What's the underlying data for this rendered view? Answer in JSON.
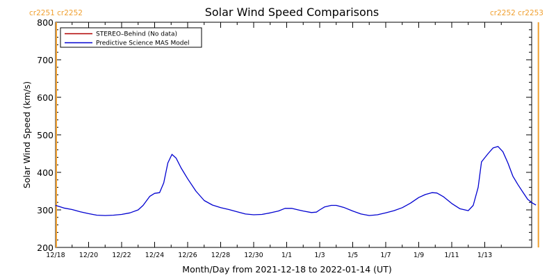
{
  "chart_data": {
    "type": "line",
    "title": "Solar Wind Speed Comparisons",
    "xlabel": "Month/Day from 2021-12-18 to 2022-01-14 (UT)",
    "ylabel": "Solar Wind Speed (km/s)",
    "ylim": [
      200,
      800
    ],
    "yticks": [
      200,
      300,
      400,
      500,
      600,
      700,
      800
    ],
    "xlim_days": [
      0,
      28
    ],
    "xticks": [
      {
        "day": 0,
        "label": "12/18"
      },
      {
        "day": 2,
        "label": "12/20"
      },
      {
        "day": 4,
        "label": "12/22"
      },
      {
        "day": 6,
        "label": "12/24"
      },
      {
        "day": 8,
        "label": "12/26"
      },
      {
        "day": 10,
        "label": "12/28"
      },
      {
        "day": 12,
        "label": "12/30"
      },
      {
        "day": 14,
        "label": "1/1"
      },
      {
        "day": 16,
        "label": "1/3"
      },
      {
        "day": 18,
        "label": "1/5"
      },
      {
        "day": 20,
        "label": "1/7"
      },
      {
        "day": 22,
        "label": "1/9"
      },
      {
        "day": 24,
        "label": "1/11"
      },
      {
        "day": 26,
        "label": "1/13"
      }
    ],
    "legend_position": "top-left",
    "series": [
      {
        "name": "STEREO–Behind (No data)",
        "color": "#b00000",
        "points": []
      },
      {
        "name": "Predictive Science MAS Model",
        "color": "#0000d0",
        "points": [
          [
            0.0,
            312
          ],
          [
            0.5,
            305
          ],
          [
            1.0,
            301
          ],
          [
            1.5,
            295
          ],
          [
            2.0,
            290
          ],
          [
            2.5,
            286
          ],
          [
            3.0,
            285
          ],
          [
            3.5,
            286
          ],
          [
            4.0,
            288
          ],
          [
            4.5,
            292
          ],
          [
            5.0,
            300
          ],
          [
            5.3,
            312
          ],
          [
            5.7,
            336
          ],
          [
            6.0,
            344
          ],
          [
            6.3,
            346
          ],
          [
            6.55,
            372
          ],
          [
            6.8,
            425
          ],
          [
            7.05,
            448
          ],
          [
            7.3,
            438
          ],
          [
            7.6,
            412
          ],
          [
            8.0,
            383
          ],
          [
            8.5,
            350
          ],
          [
            9.0,
            325
          ],
          [
            9.5,
            313
          ],
          [
            10.0,
            306
          ],
          [
            10.5,
            301
          ],
          [
            11.0,
            295
          ],
          [
            11.5,
            289
          ],
          [
            12.0,
            287
          ],
          [
            12.5,
            288
          ],
          [
            13.0,
            292
          ],
          [
            13.5,
            297
          ],
          [
            13.9,
            304
          ],
          [
            14.3,
            304
          ],
          [
            14.7,
            300
          ],
          [
            15.0,
            297
          ],
          [
            15.5,
            293
          ],
          [
            15.8,
            294
          ],
          [
            16.0,
            300
          ],
          [
            16.3,
            308
          ],
          [
            16.7,
            312
          ],
          [
            17.0,
            312
          ],
          [
            17.5,
            306
          ],
          [
            18.0,
            297
          ],
          [
            18.5,
            289
          ],
          [
            19.0,
            285
          ],
          [
            19.5,
            287
          ],
          [
            20.0,
            292
          ],
          [
            20.5,
            298
          ],
          [
            21.0,
            306
          ],
          [
            21.5,
            318
          ],
          [
            22.0,
            333
          ],
          [
            22.4,
            341
          ],
          [
            22.8,
            346
          ],
          [
            23.1,
            345
          ],
          [
            23.5,
            335
          ],
          [
            24.0,
            317
          ],
          [
            24.5,
            303
          ],
          [
            25.0,
            298
          ],
          [
            25.3,
            312
          ],
          [
            25.6,
            360
          ],
          [
            25.8,
            428
          ],
          [
            26.2,
            450
          ],
          [
            26.5,
            465
          ],
          [
            26.8,
            469
          ],
          [
            27.1,
            455
          ],
          [
            27.4,
            425
          ],
          [
            27.7,
            390
          ],
          [
            28.0,
            368
          ],
          [
            28.3,
            348
          ],
          [
            28.6,
            328
          ],
          [
            28.9,
            318
          ],
          [
            29.1,
            313
          ]
        ]
      }
    ],
    "carrington_markers": [
      {
        "day": 0.0,
        "label": "cr2251 cr2252",
        "color": "#f0a030",
        "side": "left"
      },
      {
        "day": 29.25,
        "label": "cr2252 cr2253",
        "color": "#f0a030",
        "side": "right"
      }
    ]
  }
}
